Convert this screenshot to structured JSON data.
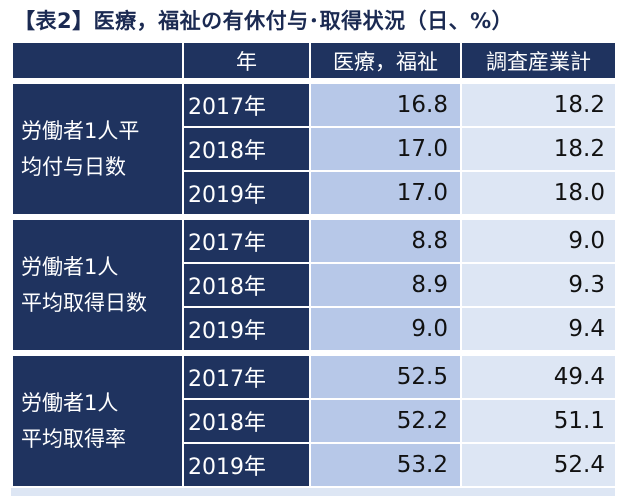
{
  "title": "【表2】医療，福祉の有休付与･取得状況（日、%）",
  "header": {
    "year": "年",
    "medical": "医療，福祉",
    "industry": "調査産業計"
  },
  "sections": [
    {
      "label_line1": "労働者1人平",
      "label_line2": "均付与日数",
      "rows": [
        {
          "year": "2017年",
          "medical": "16.8",
          "industry": "18.2"
        },
        {
          "year": "2018年",
          "medical": "17.0",
          "industry": "18.2"
        },
        {
          "year": "2019年",
          "medical": "17.0",
          "industry": "18.0"
        }
      ]
    },
    {
      "label_line1": "労働者1人",
      "label_line2": "平均取得日数",
      "rows": [
        {
          "year": "2017年",
          "medical": "8.8",
          "industry": "9.0"
        },
        {
          "year": "2018年",
          "medical": "8.9",
          "industry": "9.3"
        },
        {
          "year": "2019年",
          "medical": "9.0",
          "industry": "9.4"
        }
      ]
    },
    {
      "label_line1": "労働者1人",
      "label_line2": "平均取得率",
      "rows": [
        {
          "year": "2017年",
          "medical": "52.5",
          "industry": "49.4"
        },
        {
          "year": "2018年",
          "medical": "52.2",
          "industry": "51.1"
        },
        {
          "year": "2019年",
          "medical": "53.2",
          "industry": "52.4"
        }
      ]
    }
  ],
  "colors": {
    "navy": "#1f335f",
    "medical_fill": "#b7c8e8",
    "industry_fill": "#dde6f4"
  }
}
